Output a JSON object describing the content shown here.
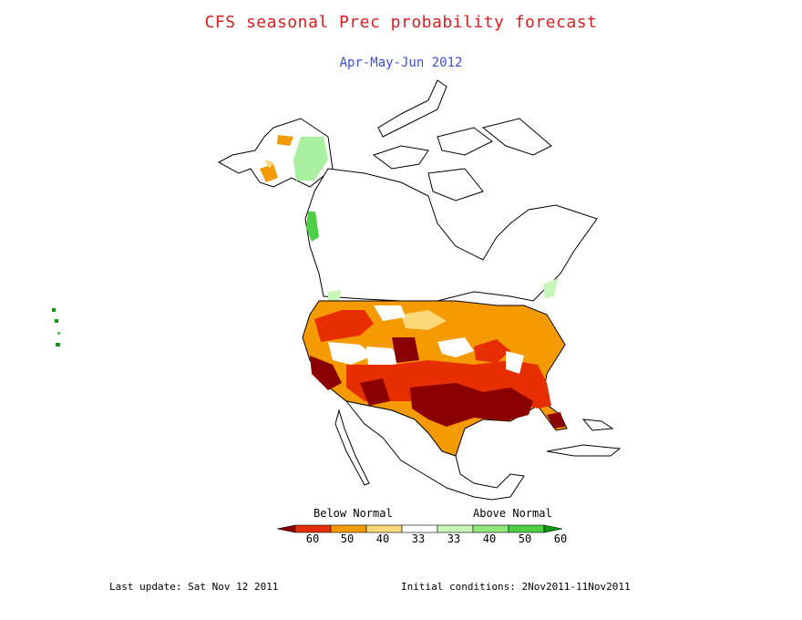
{
  "title": "CFS seasonal Prec probability forecast",
  "subtitle": "Apr-May-Jun 2012",
  "legend": {
    "below_label": "Below Normal",
    "above_label": "Above Normal",
    "ticks": [
      "60",
      "50",
      "40",
      "33",
      "33",
      "40",
      "50",
      "60"
    ],
    "colors": [
      "#8b0000",
      "#e62e00",
      "#f59a00",
      "#fad87a",
      "#ffffff",
      "#c8f5b8",
      "#8ee87c",
      "#4ccf44",
      "#0a9a14"
    ]
  },
  "footer": {
    "last_update": "Last update: Sat Nov 12 2011",
    "initial_conditions": "Initial conditions: 2Nov2011-11Nov2011"
  }
}
